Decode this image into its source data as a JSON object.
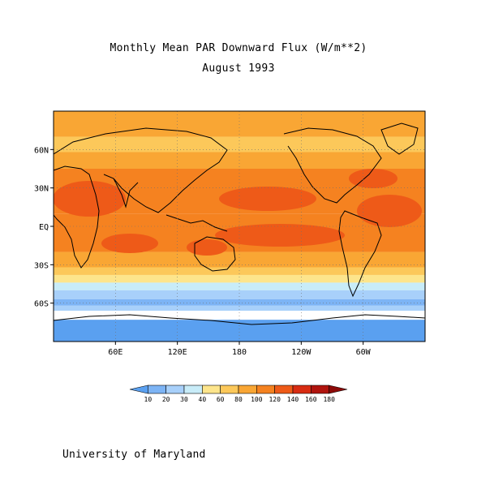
{
  "header": {
    "title": "Monthly Mean PAR Downward Flux (W/m**2)",
    "subtitle": "August 1993"
  },
  "map": {
    "lat_ticks": [
      "60N",
      "30N",
      "EQ",
      "30S",
      "60S"
    ],
    "lon_ticks": [
      "60E",
      "120E",
      "180",
      "120W",
      "60W"
    ],
    "colorbar": {
      "levels": [
        "10",
        "20",
        "30",
        "40",
        "60",
        "80",
        "100",
        "120",
        "140",
        "160",
        "180"
      ],
      "colors": [
        "#5aa0f0",
        "#7db4f5",
        "#a8d0fa",
        "#c8ecf8",
        "#fde58c",
        "#fcc85a",
        "#f9a634",
        "#f58220",
        "#ee5a18",
        "#d82c12",
        "#b0140e",
        "#8c0a08"
      ]
    },
    "bands": [
      {
        "lat_top": 90,
        "lat_bot": 70,
        "color": "#f9a634"
      },
      {
        "lat_top": 70,
        "lat_bot": 58,
        "color": "#fcc85a"
      },
      {
        "lat_top": 58,
        "lat_bot": 45,
        "color": "#f9a634"
      },
      {
        "lat_top": 45,
        "lat_bot": 10,
        "color": "#f58220"
      },
      {
        "lat_top": 10,
        "lat_bot": -20,
        "color": "#f58220"
      },
      {
        "lat_top": -20,
        "lat_bot": -32,
        "color": "#f9a634"
      },
      {
        "lat_top": -32,
        "lat_bot": -38,
        "color": "#fcc85a"
      },
      {
        "lat_top": -38,
        "lat_bot": -44,
        "color": "#fde58c"
      },
      {
        "lat_top": -44,
        "lat_bot": -50,
        "color": "#c8ecf8"
      },
      {
        "lat_top": -50,
        "lat_bot": -57,
        "color": "#a8d0fa"
      },
      {
        "lat_top": -57,
        "lat_bot": -62,
        "color": "#7db4f5"
      },
      {
        "lat_top": -62,
        "lat_bot": -66,
        "color": "#a8d0fa"
      },
      {
        "lat_top": -66,
        "lat_bot": -73,
        "color": "#ffffff"
      },
      {
        "lat_top": -73,
        "lat_bot": -90,
        "color": "#5aa0f0"
      }
    ]
  },
  "footer": {
    "credit": "University of Maryland"
  }
}
